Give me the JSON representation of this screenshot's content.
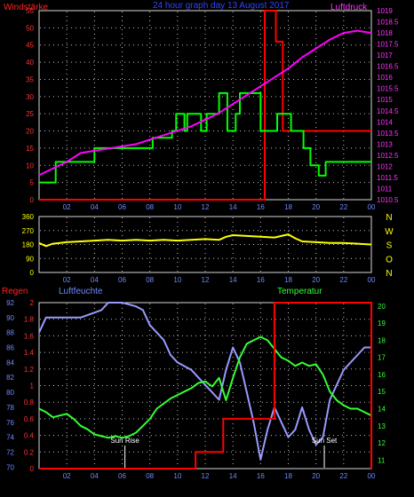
{
  "chart_data": [
    {
      "type": "line",
      "title": "24 hour graph day 13 August 2017",
      "left_label": "Windstärke",
      "right_label": "Luftdruck",
      "x_ticks": [
        "02",
        "04",
        "06",
        "08",
        "10",
        "12",
        "14",
        "16",
        "18",
        "20",
        "22",
        "00"
      ],
      "y_left_ticks": [
        "0",
        "5",
        "10",
        "15",
        "20",
        "25",
        "30",
        "35",
        "40",
        "45",
        "50",
        "55"
      ],
      "y_right_ticks": [
        "1010.5",
        "1011",
        "1011.5",
        "1012",
        "1012.5",
        "1013",
        "1013.5",
        "1014",
        "1014.5",
        "1015",
        "1015.5",
        "1016",
        "1016.5",
        "1017",
        "1017.5",
        "1018",
        "1018.5",
        "1019"
      ],
      "ylim_left": [
        0,
        55
      ],
      "ylim_right": [
        1010.5,
        1019
      ],
      "xlim_hours": [
        0,
        24
      ],
      "series": [
        {
          "color": "#00ff00",
          "axis": "left",
          "step": true,
          "x": [
            0,
            1.2,
            4.0,
            6.0,
            7.8,
            8.2,
            9.6,
            9.9,
            10.5,
            10.7,
            11.7,
            12.1,
            12.6,
            13.0,
            13.6,
            14.2,
            14.5,
            16.0,
            17.2,
            18.2,
            19.1,
            19.6,
            20.2,
            20.7,
            24
          ],
          "y": [
            5,
            11,
            15,
            15,
            15,
            18,
            20,
            25,
            20,
            25,
            20,
            25,
            25,
            31,
            20,
            25,
            31,
            20,
            25,
            20,
            15,
            10,
            7,
            11,
            11
          ]
        },
        {
          "color": "#ff00ff",
          "axis": "right",
          "step": false,
          "x": [
            0,
            1.0,
            2.0,
            3.0,
            4.0,
            5.0,
            6.0,
            7.0,
            8.0,
            9.0,
            10.0,
            11.0,
            12.0,
            13.0,
            14.0,
            15.0,
            16.0,
            17.0,
            18.0,
            19.0,
            20.0,
            21.0,
            22.0,
            23.0,
            24.0
          ],
          "y": [
            1011.6,
            1011.9,
            1012.2,
            1012.6,
            1012.7,
            1012.8,
            1012.9,
            1013.0,
            1013.2,
            1013.4,
            1013.6,
            1013.8,
            1014.1,
            1014.4,
            1014.8,
            1015.2,
            1015.6,
            1016.0,
            1016.4,
            1016.9,
            1017.3,
            1017.7,
            1018.0,
            1018.1,
            1018.0
          ]
        },
        {
          "color": "#ff0000",
          "axis": "left",
          "step": true,
          "x": [
            0,
            16.3,
            17.1,
            17.6,
            24
          ],
          "y": [
            0,
            55,
            46,
            20,
            20
          ]
        }
      ]
    },
    {
      "type": "line",
      "title": "",
      "right_labels": [
        "N",
        "W",
        "S",
        "O",
        "N"
      ],
      "x_ticks": [
        "02",
        "04",
        "06",
        "08",
        "10",
        "12",
        "14",
        "16",
        "18",
        "20",
        "22",
        "00"
      ],
      "y_ticks": [
        "0",
        "90",
        "180",
        "270",
        "360"
      ],
      "ylim": [
        0,
        360
      ],
      "xlim_hours": [
        0,
        24
      ],
      "series": [
        {
          "color": "#ffff00",
          "x": [
            0,
            0.5,
            1.0,
            2.0,
            3.0,
            4.0,
            5.0,
            6.0,
            7.0,
            8.0,
            9.0,
            10.0,
            11.0,
            12.0,
            13.0,
            13.5,
            14.0,
            15.0,
            16.0,
            17.0,
            18.0,
            18.5,
            19.0,
            20.0,
            21.0,
            22.0,
            23.0,
            24.0
          ],
          "y": [
            190,
            170,
            185,
            195,
            200,
            205,
            210,
            205,
            210,
            205,
            210,
            205,
            210,
            215,
            210,
            230,
            240,
            235,
            230,
            225,
            245,
            220,
            200,
            195,
            190,
            190,
            185,
            180
          ]
        }
      ]
    },
    {
      "type": "line",
      "left_label": "Regen",
      "mid_label": "Luftfeuchte",
      "right_label": "Temperatur",
      "x_ticks": [
        "02",
        "04",
        "06",
        "08",
        "10",
        "12",
        "14",
        "16",
        "18",
        "20",
        "22",
        "00"
      ],
      "y_rain_ticks": [
        "0",
        "0.2",
        "0.4",
        "0.6",
        "0.8",
        "1",
        "1.2",
        "1.4",
        "1.6",
        "1.8",
        "2"
      ],
      "y_hum_ticks": [
        "70",
        "72",
        "74",
        "76",
        "78",
        "80",
        "82",
        "84",
        "86",
        "88",
        "90",
        "92"
      ],
      "y_temp_ticks": [
        "11",
        "12",
        "13",
        "14",
        "15",
        "16",
        "17",
        "18",
        "19",
        "20"
      ],
      "ylim_rain": [
        0,
        2
      ],
      "ylim_hum": [
        69.8,
        92
      ],
      "ylim_temp": [
        10.5,
        20.2
      ],
      "xlim_hours": [
        0,
        24
      ],
      "annotations": [
        {
          "text": "Sun Rise",
          "hour": 6.2
        },
        {
          "text": "Sun Set",
          "hour": 20.6
        }
      ],
      "series": [
        {
          "name": "Luftfeuchte",
          "color": "#9999ff",
          "axis": "hum",
          "x": [
            0,
            0.5,
            1.5,
            3.0,
            4.5,
            5.0,
            5.5,
            6.0,
            7.0,
            7.5,
            8.0,
            9.0,
            9.5,
            10.0,
            11.0,
            12.0,
            12.5,
            13.0,
            13.5,
            14.0,
            14.5,
            15.0,
            15.5,
            16.0,
            16.5,
            17.0,
            17.5,
            18.0,
            18.5,
            19.0,
            19.5,
            20.0,
            20.5,
            21.0,
            21.5,
            22.0,
            23.0,
            23.5,
            24.0
          ],
          "y": [
            88,
            90,
            90,
            90,
            91,
            92,
            92,
            92,
            91.5,
            91,
            89,
            87,
            85,
            84,
            83,
            81,
            80,
            79,
            83,
            86,
            84,
            80,
            76,
            71,
            75,
            78,
            76,
            74,
            75,
            78,
            75,
            73,
            74,
            79,
            81,
            83,
            85,
            86,
            86
          ]
        },
        {
          "name": "Temperatur",
          "color": "#33ff33",
          "axis": "temp",
          "x": [
            0,
            0.5,
            1.0,
            1.5,
            2.0,
            2.5,
            3.0,
            3.5,
            4.0,
            4.5,
            5.0,
            5.5,
            6.0,
            6.5,
            7.0,
            7.5,
            8.0,
            8.5,
            9.0,
            9.5,
            10.0,
            10.5,
            11.0,
            11.5,
            12.0,
            12.5,
            13.0,
            13.5,
            14.0,
            14.5,
            15.0,
            15.5,
            16.0,
            16.5,
            17.0,
            17.5,
            18.0,
            18.5,
            19.0,
            19.5,
            20.0,
            20.5,
            21.0,
            21.5,
            22.0,
            22.5,
            23.0,
            23.5,
            24.0
          ],
          "y": [
            14,
            13.8,
            13.5,
            13.6,
            13.7,
            13.4,
            13,
            12.8,
            12.5,
            12.4,
            12.3,
            12.4,
            12.3,
            12.4,
            12.6,
            13,
            13.4,
            14,
            14.3,
            14.6,
            14.8,
            15,
            15.2,
            15.5,
            15.6,
            15.3,
            15.8,
            14.5,
            15.8,
            17,
            17.8,
            18,
            18.2,
            18,
            17.5,
            17,
            16.8,
            16.5,
            16.7,
            16.5,
            16.6,
            16,
            15,
            14.5,
            14.2,
            14,
            14,
            13.8,
            13.6
          ]
        },
        {
          "name": "Regen",
          "color": "#ff0000",
          "axis": "rain",
          "step": true,
          "x": [
            0,
            11.3,
            13.3,
            17.0,
            24
          ],
          "y": [
            0,
            0.2,
            0.6,
            2.0,
            0
          ]
        }
      ]
    }
  ]
}
